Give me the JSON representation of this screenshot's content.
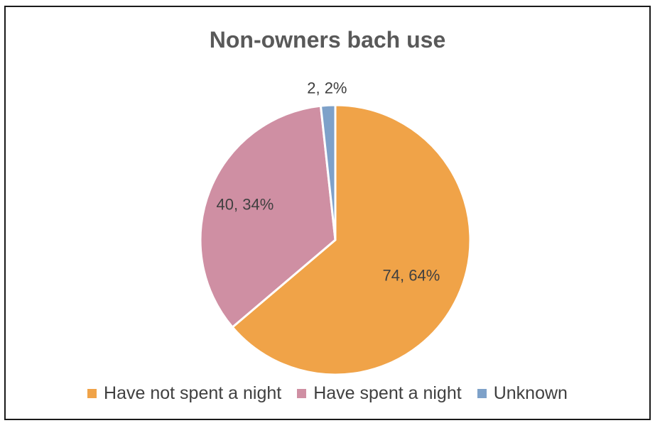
{
  "chart_data": {
    "type": "pie",
    "title": "Non-owners bach use",
    "slices": [
      {
        "name": "Have not spent a night",
        "value": 74,
        "percent_label": "64%",
        "label": "74, 64%",
        "color": "#F0A348"
      },
      {
        "name": "Have spent a night",
        "value": 40,
        "percent_label": "34%",
        "label": "40, 34%",
        "color": "#CF8FA3"
      },
      {
        "name": "Unknown",
        "value": 2,
        "percent_label": "2%",
        "label": "2, 2%",
        "color": "#7EA1C9"
      }
    ],
    "legend_position": "bottom"
  }
}
